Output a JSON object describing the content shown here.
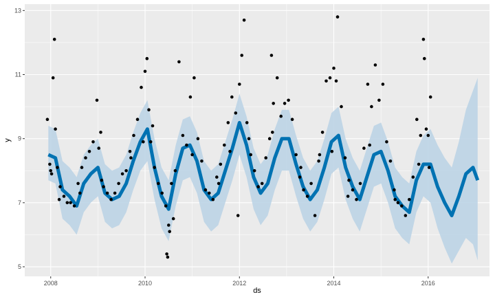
{
  "chart_data": {
    "type": "scatter",
    "title": "",
    "xlabel": "ds",
    "ylabel": "y",
    "xlim": [
      2007.45,
      2017.3
    ],
    "ylim": [
      4.7,
      13.2
    ],
    "grid": true,
    "legend": "none",
    "x_ticks": [
      {
        "value": 2008,
        "label": "2008"
      },
      {
        "value": 2010,
        "label": "2010"
      },
      {
        "value": 2012,
        "label": "2012"
      },
      {
        "value": 2014,
        "label": "2014"
      },
      {
        "value": 2016,
        "label": "2016"
      }
    ],
    "y_ticks": [
      {
        "value": 5,
        "label": "5"
      },
      {
        "value": 7,
        "label": "7"
      },
      {
        "value": 9,
        "label": "9"
      },
      {
        "value": 11,
        "label": "11"
      },
      {
        "value": 13,
        "label": "13"
      }
    ],
    "colors": {
      "panel_background": "#ebebeb",
      "grid_major": "#ffffff",
      "forecast_line": "#0072b2",
      "uncertainty_band": "#bcd4e6",
      "points": "#000000"
    },
    "series": [
      {
        "kind": "forecast",
        "x": [
          2007.95,
          2008.1,
          2008.25,
          2008.4,
          2008.55,
          2008.7,
          2008.85,
          2009.0,
          2009.15,
          2009.3,
          2009.45,
          2009.6,
          2009.75,
          2009.9,
          2010.05,
          2010.2,
          2010.35,
          2010.5,
          2010.65,
          2010.8,
          2010.95,
          2011.1,
          2011.25,
          2011.4,
          2011.55,
          2011.7,
          2011.85,
          2012.0,
          2012.15,
          2012.3,
          2012.45,
          2012.6,
          2012.75,
          2012.9,
          2013.05,
          2013.2,
          2013.35,
          2013.5,
          2013.65,
          2013.8,
          2013.95,
          2014.1,
          2014.25,
          2014.4,
          2014.55,
          2014.7,
          2014.85,
          2015.0,
          2015.15,
          2015.3,
          2015.45,
          2015.6,
          2015.75,
          2015.9,
          2016.05,
          2016.2,
          2016.35,
          2016.5,
          2016.65,
          2016.8,
          2016.95,
          2017.05
        ],
        "y": [
          8.5,
          8.4,
          7.4,
          7.2,
          6.9,
          7.6,
          7.9,
          8.1,
          7.3,
          7.1,
          7.2,
          7.6,
          8.3,
          8.9,
          9.3,
          8.1,
          7.2,
          6.8,
          7.9,
          8.7,
          8.8,
          8.3,
          7.4,
          7.1,
          7.3,
          8.0,
          8.7,
          9.5,
          8.8,
          7.8,
          7.3,
          7.6,
          8.4,
          9.0,
          9.0,
          8.2,
          7.5,
          7.1,
          7.4,
          8.1,
          8.9,
          9.1,
          8.1,
          7.5,
          7.1,
          7.8,
          8.5,
          8.6,
          8.0,
          7.2,
          6.9,
          6.7,
          7.7,
          8.2,
          8.2,
          7.5,
          7.0,
          6.6,
          7.2,
          7.9,
          8.1,
          7.7
        ],
        "lower": [
          7.7,
          7.6,
          6.5,
          6.3,
          6.0,
          6.7,
          7.0,
          7.2,
          6.4,
          6.2,
          6.3,
          6.7,
          7.4,
          8.0,
          8.3,
          7.1,
          6.2,
          5.8,
          6.9,
          7.7,
          7.8,
          7.3,
          6.4,
          6.1,
          6.3,
          7.0,
          7.7,
          8.5,
          7.8,
          6.8,
          6.3,
          6.6,
          7.4,
          8.0,
          8.0,
          7.2,
          6.5,
          6.1,
          6.4,
          7.1,
          7.9,
          8.1,
          7.1,
          6.5,
          6.1,
          6.8,
          7.5,
          7.6,
          7.0,
          6.2,
          5.9,
          5.7,
          6.7,
          7.2,
          7.0,
          6.2,
          5.6,
          5.1,
          5.5,
          5.9,
          5.7,
          5.2
        ],
        "upper": [
          9.4,
          9.3,
          8.3,
          8.1,
          7.8,
          8.5,
          8.8,
          9.0,
          8.2,
          8.0,
          8.1,
          8.5,
          9.2,
          9.8,
          10.2,
          9.0,
          8.1,
          7.7,
          8.8,
          9.6,
          9.7,
          9.2,
          8.3,
          8.0,
          8.2,
          8.9,
          9.6,
          10.4,
          9.7,
          8.7,
          8.2,
          8.5,
          9.3,
          9.9,
          9.9,
          9.1,
          8.4,
          8.0,
          8.3,
          9.0,
          9.8,
          10.0,
          9.0,
          8.4,
          8.0,
          8.7,
          9.4,
          9.5,
          8.9,
          8.1,
          7.8,
          7.6,
          8.6,
          9.1,
          9.3,
          8.8,
          8.4,
          8.1,
          8.9,
          9.9,
          10.5,
          10.9
        ]
      },
      {
        "kind": "observations",
        "x": [
          2007.93,
          2007.98,
          2008.02,
          2008.05,
          2008.08,
          2008.1,
          2008.14,
          2008.2,
          2008.28,
          2008.35,
          2008.42,
          2008.5,
          2008.58,
          2008.66,
          2008.74,
          2008.82,
          2008.9,
          2008.98,
          2009.02,
          2009.06,
          2009.12,
          2009.2,
          2009.28,
          2009.36,
          2009.44,
          2009.52,
          2009.6,
          2009.68,
          2009.76,
          2009.84,
          2009.92,
          2010.0,
          2010.04,
          2010.08,
          2010.12,
          2010.2,
          2010.28,
          2010.36,
          2010.44,
          2010.46,
          2010.48,
          2010.5,
          2010.52,
          2010.56,
          2010.64,
          2010.72,
          2010.8,
          2010.88,
          2010.96,
          2011.04,
          2011.12,
          2011.2,
          2011.28,
          2011.36,
          2011.44,
          2011.52,
          2011.6,
          2011.68,
          2011.76,
          2011.84,
          2011.92,
          2011.97,
          2012.0,
          2012.05,
          2012.1,
          2012.16,
          2012.24,
          2012.32,
          2012.4,
          2012.48,
          2012.56,
          2012.64,
          2012.68,
          2012.72,
          2012.8,
          2012.88,
          2012.96,
          2013.04,
          2013.12,
          2013.2,
          2013.28,
          2013.36,
          2013.44,
          2013.52,
          2013.6,
          2013.68,
          2013.76,
          2013.84,
          2013.92,
          2014.0,
          2014.05,
          2014.08,
          2014.16,
          2014.24,
          2014.32,
          2014.4,
          2014.48,
          2014.56,
          2014.64,
          2014.72,
          2014.8,
          2014.88,
          2014.96,
          2015.04,
          2015.12,
          2015.2,
          2015.28,
          2015.36,
          2015.44,
          2015.52,
          2015.6,
          2015.68,
          2015.76,
          2015.84,
          2015.9,
          2015.92,
          2015.96,
          2016.0,
          2016.02,
          2016.05,
          2008.0,
          2008.18,
          2008.62,
          2009.08,
          2009.7,
          2010.16,
          2010.6,
          2011.0,
          2011.56,
          2012.2,
          2012.7,
          2013.3,
          2013.96,
          2014.3,
          2014.76,
          2015.3,
          2015.8,
          2009.96,
          2011.8,
          2013.7
        ],
        "y": [
          9.6,
          8.2,
          7.9,
          10.9,
          12.1,
          9.3,
          8.1,
          7.5,
          7.2,
          7.0,
          7.0,
          6.9,
          7.6,
          8.1,
          8.4,
          8.6,
          8.9,
          10.2,
          8.7,
          9.2,
          7.5,
          7.3,
          7.1,
          7.3,
          7.6,
          7.9,
          8.0,
          8.6,
          9.1,
          9.6,
          10.6,
          11.1,
          11.5,
          9.9,
          8.9,
          8.1,
          7.6,
          7.3,
          6.9,
          5.4,
          5.3,
          6.3,
          6.1,
          7.6,
          8.0,
          11.4,
          9.1,
          8.8,
          10.3,
          10.9,
          9.0,
          8.3,
          7.4,
          7.3,
          7.1,
          7.8,
          8.2,
          8.8,
          9.5,
          10.3,
          9.8,
          6.6,
          10.7,
          11.6,
          12.7,
          9.5,
          8.5,
          8.0,
          7.5,
          7.6,
          8.4,
          9.0,
          11.6,
          10.1,
          10.9,
          9.7,
          10.1,
          10.2,
          9.6,
          8.5,
          7.8,
          7.4,
          7.2,
          7.6,
          6.6,
          8.3,
          9.2,
          10.8,
          10.9,
          11.2,
          10.8,
          12.8,
          10.0,
          8.4,
          7.7,
          7.4,
          7.1,
          7.6,
          8.7,
          10.7,
          10.0,
          11.3,
          10.2,
          10.7,
          8.9,
          8.3,
          7.4,
          7.0,
          6.9,
          6.6,
          7.1,
          7.8,
          9.6,
          9.1,
          12.1,
          11.5,
          9.3,
          9.1,
          8.1,
          10.3,
          8.0,
          7.1,
          7.3,
          7.7,
          8.4,
          9.4,
          6.5,
          8.5,
          7.6,
          9.0,
          9.2,
          8.1,
          8.6,
          7.2,
          8.8,
          7.1,
          8.2,
          8.9,
          8.6,
          8.5
        ]
      }
    ]
  }
}
